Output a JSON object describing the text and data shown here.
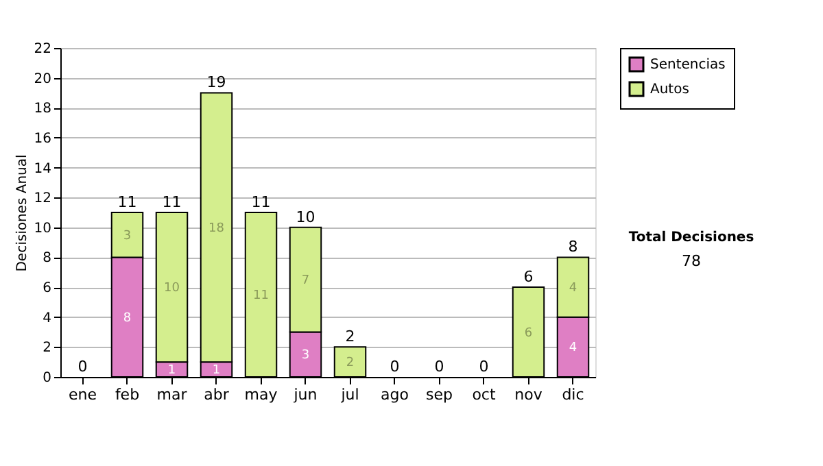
{
  "chart_data": {
    "type": "bar",
    "stacked": true,
    "ylabel": "Decisiones Anual",
    "categories": [
      "ene",
      "feb",
      "mar",
      "abr",
      "may",
      "jun",
      "jul",
      "ago",
      "sep",
      "oct",
      "nov",
      "dic"
    ],
    "series": [
      {
        "name": "Sentencias",
        "color": "#df7fc4",
        "values": [
          0,
          8,
          1,
          1,
          0,
          3,
          0,
          0,
          0,
          0,
          0,
          4
        ],
        "value_labels": [
          null,
          "8",
          "1",
          "1",
          null,
          "3",
          null,
          null,
          null,
          null,
          null,
          "4"
        ]
      },
      {
        "name": "Autos",
        "color": "#d4ee8e",
        "values": [
          0,
          3,
          10,
          18,
          11,
          7,
          2,
          0,
          0,
          0,
          6,
          4
        ],
        "value_labels": [
          null,
          "3",
          "10",
          "18",
          "11",
          "7",
          "2",
          null,
          null,
          null,
          "6",
          "4"
        ]
      }
    ],
    "totals": [
      "0",
      "11",
      "11",
      "19",
      "11",
      "10",
      "2",
      "0",
      "0",
      "0",
      "6",
      "8"
    ],
    "ylim": [
      0,
      22
    ],
    "yticks": [
      0,
      2,
      4,
      6,
      8,
      10,
      12,
      14,
      16,
      18,
      20,
      22
    ],
    "grid": "y",
    "legend": "right",
    "annotations": [
      "Total Decisiones",
      "78"
    ]
  }
}
